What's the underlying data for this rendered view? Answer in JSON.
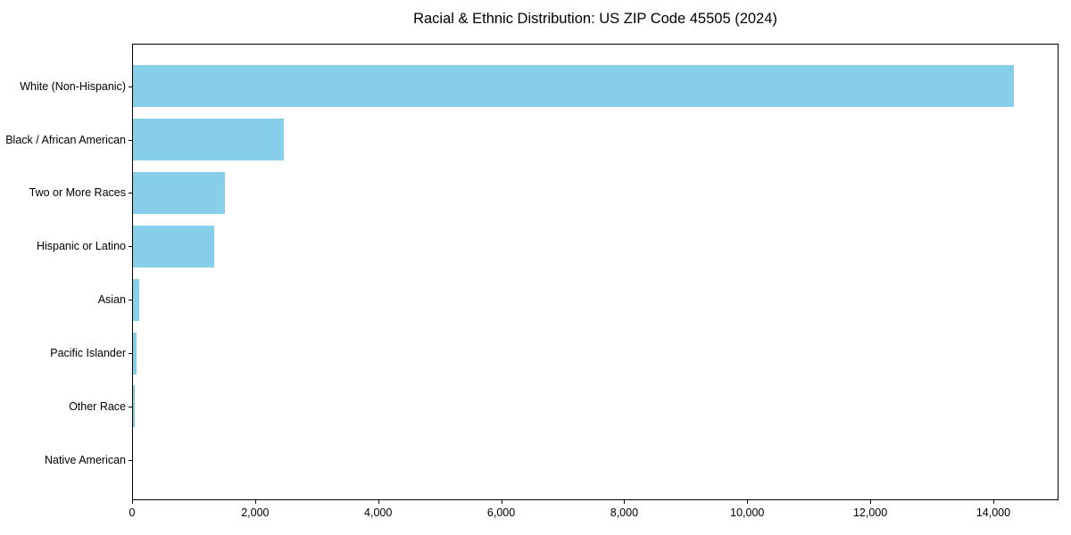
{
  "chart_data": {
    "type": "bar",
    "orientation": "horizontal",
    "title": "Racial & Ethnic Distribution: US ZIP Code 45505 (2024)",
    "categories": [
      "White (Non-Hispanic)",
      "Black / African American",
      "Two or More Races",
      "Hispanic or Latino",
      "Asian",
      "Pacific Islander",
      "Other Race",
      "Native American"
    ],
    "values": [
      14320,
      2455,
      1500,
      1320,
      95,
      55,
      35,
      0
    ],
    "xlabel": "",
    "ylabel": "",
    "xlim": [
      0,
      15060
    ],
    "xticks": [
      0,
      2000,
      4000,
      6000,
      8000,
      10000,
      12000,
      14000
    ],
    "xtick_labels": [
      "0",
      "2,000",
      "4,000",
      "6,000",
      "8,000",
      "10,000",
      "12,000",
      "14,000"
    ],
    "bar_color": "#87CEEB",
    "axis_color": "#000000",
    "text_color": "#000000",
    "grid": false,
    "legend": null
  }
}
